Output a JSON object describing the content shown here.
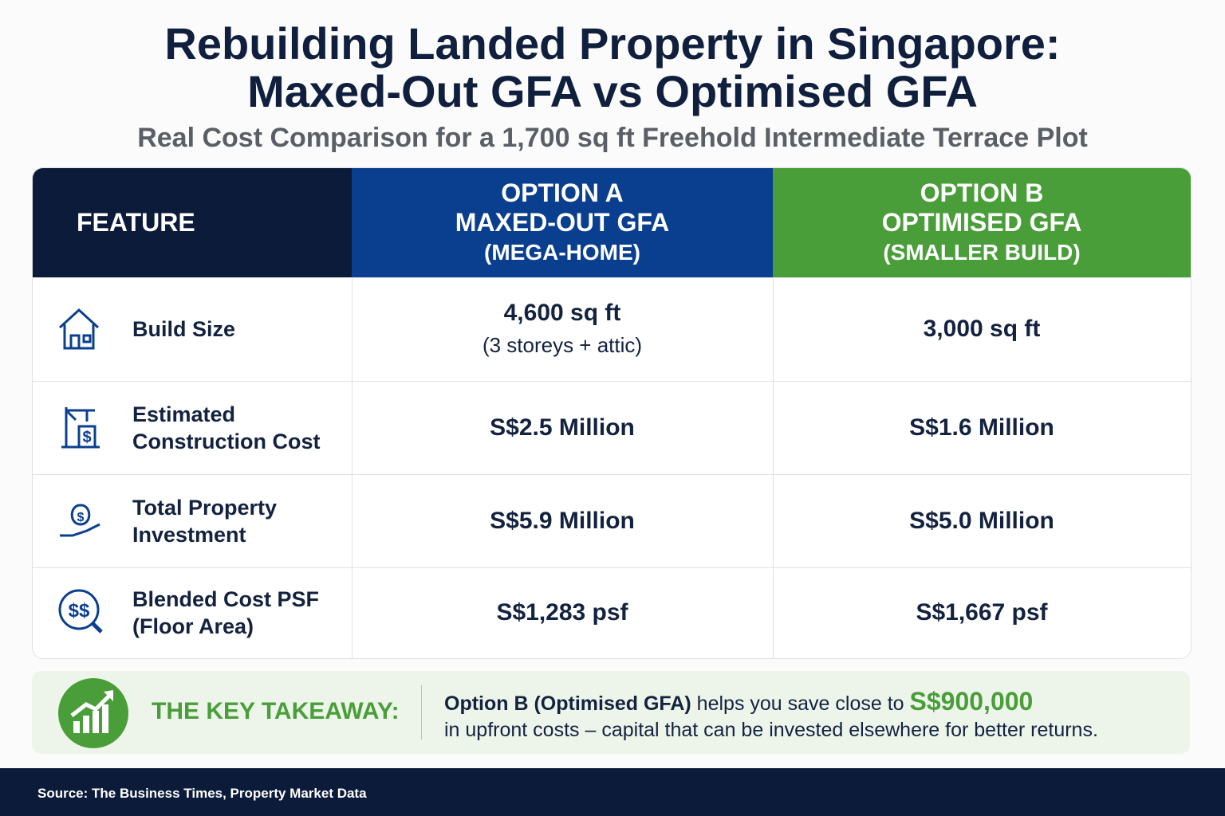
{
  "header": {
    "title_lines": [
      "Rebuilding Landed Property in Singapore:",
      "Maxed-Out GFA vs Optimised GFA"
    ],
    "subtitle": "Real Cost Comparison for a 1,700 sq ft Freehold Intermediate Terrace Plot"
  },
  "table": {
    "columns": [
      [
        "FEATURE"
      ],
      [
        "OPTION A",
        "MAXED-OUT GFA",
        "(MEGA-HOME)"
      ],
      [
        "OPTION B",
        "OPTIMISED GFA",
        "(SMALLER BUILD)"
      ]
    ],
    "rows": [
      {
        "feature": [
          "Build Size"
        ],
        "option_a": [
          "4,600 sq ft",
          "(3 storeys + attic)"
        ],
        "option_b": [
          "3,000 sq ft"
        ]
      },
      {
        "feature": [
          "Estimated",
          "Construction Cost"
        ],
        "option_a": [
          "S$2.5 Million"
        ],
        "option_b": [
          "S$1.6 Million"
        ]
      },
      {
        "feature": [
          "Total Property",
          "Investment"
        ],
        "option_a": [
          "S$5.9 Million"
        ],
        "option_b": [
          "S$5.0 Million"
        ]
      },
      {
        "feature": [
          "Blended Cost PSF",
          "(Floor Area)"
        ],
        "option_a": [
          "S$1,283 psf"
        ],
        "option_b": [
          "S$1,667 psf"
        ]
      }
    ]
  },
  "takeaway": {
    "label": "THE KEY TAKEAWAY:",
    "lead": "Option B (Optimised GFA)",
    "middle": "helps you save close to",
    "amount": "S$900,000",
    "rest": "in upfront costs – capital that can be invested elsewhere for better returns."
  },
  "footer": {
    "source": "Source: The Business Times, Property Market Data"
  }
}
